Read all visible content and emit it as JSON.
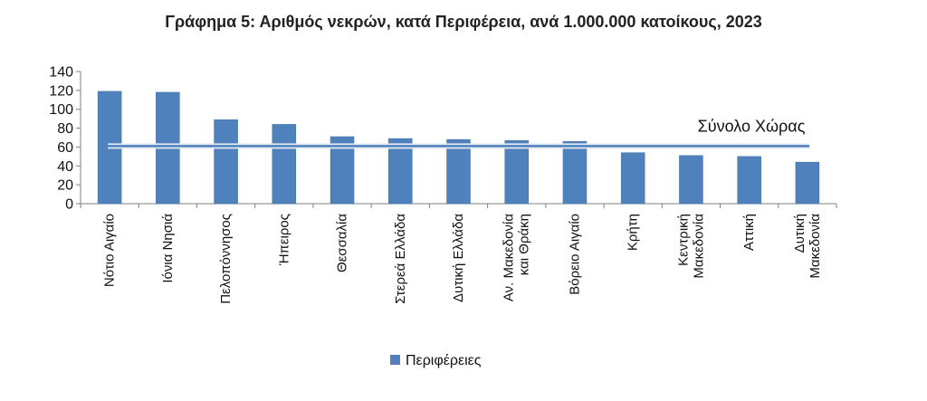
{
  "chart_data": {
    "type": "bar",
    "title": "Γράφημα 5: Αριθμός νεκρών, κατά Περιφέρεια, ανά 1.000.000 κατοίκους, 2023",
    "categories": [
      [
        "Νότιο Αιγαίο"
      ],
      [
        "Ιόνια Νησιά"
      ],
      [
        "Πελοπόννησος"
      ],
      [
        "Ήπειρος"
      ],
      [
        "Θεσσαλία"
      ],
      [
        "Στερεά Ελλάδα"
      ],
      [
        "Δυτική Ελλάδα"
      ],
      [
        "Αν. Μακεδονία",
        "και Θράκη"
      ],
      [
        "Βόρειο Αιγαίο"
      ],
      [
        "Κρήτη"
      ],
      [
        "Κεντρική",
        "Μακεδονία"
      ],
      [
        "Αττική"
      ],
      [
        "Δυτική",
        "Μακεδονία"
      ]
    ],
    "series": [
      {
        "name": "Περιφέρειες",
        "values": [
          119,
          118,
          89,
          84,
          71,
          69,
          68,
          67,
          66,
          54,
          51,
          50,
          44
        ]
      }
    ],
    "reference_line": {
      "label": "Σύνολο Χώρας",
      "value": 61
    },
    "ylim": [
      0,
      140
    ],
    "yticks": [
      0,
      20,
      40,
      60,
      80,
      100,
      120,
      140
    ],
    "grid": false,
    "legend_position": "bottom-center",
    "colors": {
      "bar": "#4f81bd",
      "bar_edge": "#41709f",
      "reference": "#4f81bd",
      "reference_glow": "#dfe8f3"
    }
  }
}
